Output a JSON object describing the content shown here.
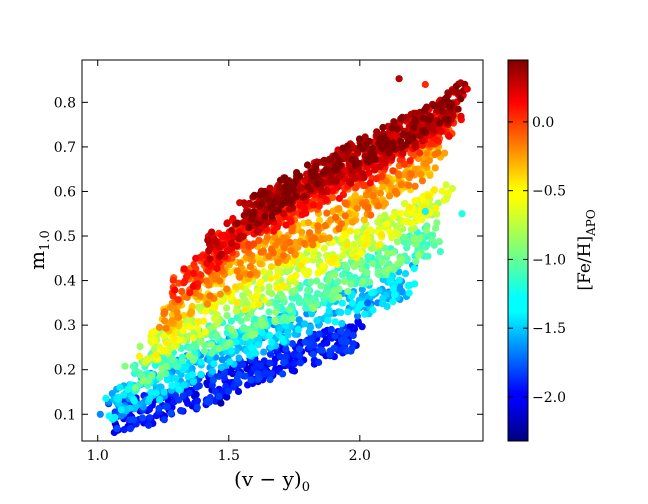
{
  "chart_data": {
    "type": "scatter",
    "title": "",
    "xlabel": {
      "base": "(v − y)",
      "sub": "0"
    },
    "ylabel": {
      "base": "m",
      "sub": "1.0"
    },
    "xlim": [
      0.94,
      2.47
    ],
    "ylim": [
      0.04,
      0.895
    ],
    "xticks": [
      1.0,
      1.5,
      2.0
    ],
    "xtick_labels": [
      "1.0",
      "1.5",
      "2.0"
    ],
    "yticks": [
      0.1,
      0.2,
      0.3,
      0.4,
      0.5,
      0.6,
      0.7,
      0.8
    ],
    "ytick_labels": [
      "0.1",
      "0.2",
      "0.3",
      "0.4",
      "0.5",
      "0.6",
      "0.7",
      "0.8"
    ],
    "grid": false,
    "legend": "none",
    "colorbar": {
      "label": {
        "base": "[Fe/H]",
        "sub": "APO"
      },
      "range": [
        -2.32,
        0.45
      ],
      "ticks": [
        0.0,
        -0.5,
        -1.0,
        -1.5,
        -2.0
      ],
      "tick_labels": [
        "0.0",
        "−0.5",
        "−1.0",
        "−1.5",
        "−2.0"
      ],
      "colormap": "jet"
    },
    "marker_size": 3.6,
    "density_bands": [
      {
        "feh": 0.35,
        "points": [
          [
            1.55,
            0.54
          ],
          [
            1.75,
            0.61
          ],
          [
            1.95,
            0.67
          ],
          [
            2.15,
            0.73
          ],
          [
            2.3,
            0.77
          ],
          [
            2.38,
            0.81
          ]
        ]
      },
      {
        "feh": 0.15,
        "points": [
          [
            1.4,
            0.46
          ],
          [
            1.6,
            0.54
          ],
          [
            1.8,
            0.61
          ],
          [
            2.0,
            0.66
          ],
          [
            2.2,
            0.73
          ],
          [
            2.38,
            0.79
          ]
        ]
      },
      {
        "feh": -0.05,
        "points": [
          [
            1.3,
            0.38
          ],
          [
            1.5,
            0.48
          ],
          [
            1.7,
            0.55
          ],
          [
            1.9,
            0.61
          ],
          [
            2.1,
            0.67
          ],
          [
            2.35,
            0.76
          ]
        ]
      },
      {
        "feh": -0.35,
        "points": [
          [
            1.25,
            0.31
          ],
          [
            1.45,
            0.39
          ],
          [
            1.65,
            0.46
          ],
          [
            1.85,
            0.52
          ],
          [
            2.05,
            0.58
          ],
          [
            2.3,
            0.68
          ]
        ]
      },
      {
        "feh": -0.7,
        "points": [
          [
            1.18,
            0.24
          ],
          [
            1.35,
            0.3
          ],
          [
            1.55,
            0.36
          ],
          [
            1.8,
            0.44
          ],
          [
            2.05,
            0.5
          ],
          [
            2.35,
            0.6
          ]
        ]
      },
      {
        "feh": -1.05,
        "points": [
          [
            1.12,
            0.18
          ],
          [
            1.3,
            0.23
          ],
          [
            1.5,
            0.29
          ],
          [
            1.75,
            0.35
          ],
          [
            2.0,
            0.42
          ],
          [
            2.3,
            0.5
          ]
        ]
      },
      {
        "feh": -1.45,
        "points": [
          [
            1.05,
            0.12
          ],
          [
            1.25,
            0.17
          ],
          [
            1.45,
            0.23
          ],
          [
            1.7,
            0.29
          ],
          [
            1.95,
            0.34
          ],
          [
            2.2,
            0.4
          ]
        ]
      },
      {
        "feh": -1.95,
        "points": [
          [
            1.05,
            0.09
          ],
          [
            1.2,
            0.11
          ],
          [
            1.4,
            0.15
          ],
          [
            1.6,
            0.2
          ],
          [
            1.8,
            0.24
          ],
          [
            2.0,
            0.28
          ]
        ]
      }
    ],
    "outliers": [
      {
        "x": 2.15,
        "y": 0.853,
        "feh": 0.3
      },
      {
        "x": 2.25,
        "y": 0.84,
        "feh": 0.0
      },
      {
        "x": 2.41,
        "y": 0.83,
        "feh": 0.2
      },
      {
        "x": 1.01,
        "y": 0.1,
        "feh": -1.6
      },
      {
        "x": 2.25,
        "y": 0.555,
        "feh": -1.3
      },
      {
        "x": 2.39,
        "y": 0.55,
        "feh": -1.2
      },
      {
        "x": 1.47,
        "y": 0.125,
        "feh": -2.2
      },
      {
        "x": 2.03,
        "y": 0.35,
        "feh": -1.7
      }
    ]
  }
}
